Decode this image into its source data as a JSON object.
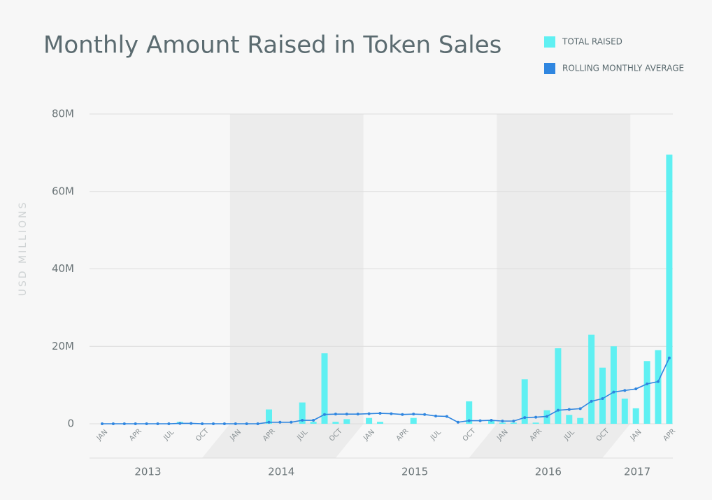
{
  "chart_data": {
    "type": "bar_line",
    "title": "Monthly Amount Raised in Token Sales",
    "ylabel": "USD MILLIONS",
    "categories": [
      "JAN",
      null,
      null,
      "APR",
      null,
      null,
      "JUL",
      null,
      null,
      "OCT",
      null,
      null,
      "JAN",
      null,
      null,
      "APR",
      null,
      null,
      "JUL",
      null,
      null,
      "OCT",
      null,
      null,
      "JAN",
      null,
      null,
      "APR",
      null,
      null,
      "JUL",
      null,
      null,
      "OCT",
      null,
      null,
      "JAN",
      null,
      null,
      "APR",
      null,
      null,
      "JUL",
      null,
      null,
      "OCT",
      null,
      null,
      "JAN",
      null,
      null,
      "APR"
    ],
    "year_labels": [
      "2013",
      "2014",
      "2015",
      "2016",
      "2017"
    ],
    "series": [
      {
        "name": "TOTAL RAISED",
        "color": "#5ff0f2",
        "kind": "bar",
        "values": [
          0,
          0,
          0,
          0,
          0,
          0,
          0,
          0.5,
          0,
          0,
          0,
          0,
          0,
          0,
          0,
          3.7,
          0,
          0,
          5.5,
          0.5,
          18.2,
          0.5,
          1.2,
          0,
          1.5,
          0.5,
          0,
          0,
          1.5,
          0,
          0,
          0,
          0,
          5.8,
          0,
          1.0,
          0.3,
          0.3,
          11.5,
          0.3,
          3.5,
          19.5,
          2.3,
          1.5,
          23,
          14.5,
          20,
          6.5,
          4,
          16.2,
          19,
          69.5
        ]
      },
      {
        "name": "ROLLING MONTHLY AVERAGE",
        "color": "#2f86e0",
        "kind": "line",
        "values": [
          0,
          0,
          0,
          0,
          0,
          0,
          0,
          0.1,
          0.1,
          0,
          0,
          0,
          0,
          0,
          0,
          0.4,
          0.4,
          0.4,
          0.9,
          0.9,
          2.4,
          2.5,
          2.5,
          2.5,
          2.6,
          2.7,
          2.6,
          2.4,
          2.5,
          2.4,
          2.0,
          1.9,
          0.4,
          0.8,
          0.8,
          0.9,
          0.7,
          0.7,
          1.6,
          1.7,
          1.9,
          3.5,
          3.7,
          3.9,
          5.8,
          6.5,
          8.2,
          8.6,
          9.0,
          10.3,
          10.9,
          17
        ]
      }
    ],
    "ylim": [
      0,
      80
    ],
    "yticks": [
      0,
      {
        "value": 20,
        "label": "20M"
      },
      {
        "value": 40,
        "label": "40M"
      },
      {
        "value": 60,
        "label": "60M"
      },
      {
        "value": 80,
        "label": "80M"
      }
    ],
    "grid": true
  }
}
